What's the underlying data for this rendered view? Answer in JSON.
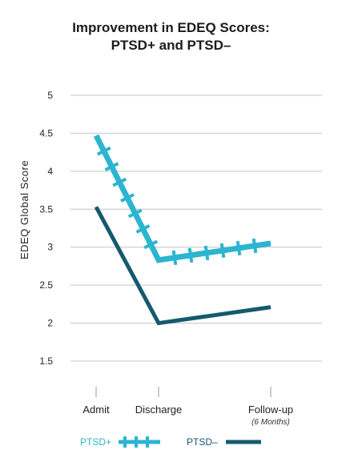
{
  "chart_data": {
    "type": "line",
    "title_line1": "Improvement in EDEQ Scores:",
    "title_line2": "PTSD+ and PTSD–",
    "ylabel": "EDEQ  Global  Score",
    "ylim": [
      1.5,
      5
    ],
    "yticks": [
      "5",
      "4.5",
      "4",
      "3.5",
      "3",
      "2.5",
      "2",
      "1.5"
    ],
    "ytick_values": [
      5,
      4.5,
      4,
      3.5,
      3,
      2.5,
      2,
      1.5
    ],
    "x": [
      0,
      1,
      2
    ],
    "categories": [
      "Admit",
      "Discharge",
      "Follow-up"
    ],
    "category_subtitle": "(6 Months)",
    "grid": true,
    "legend_position": "bottom",
    "series": [
      {
        "name": "PTSD+",
        "values": [
          4.47,
          2.83,
          3.05
        ],
        "color": "#2bb5cf",
        "marker": "cross"
      },
      {
        "name": "PTSD–",
        "values": [
          3.53,
          2.0,
          2.21
        ],
        "color": "#155a6e",
        "marker": "none"
      }
    ]
  }
}
